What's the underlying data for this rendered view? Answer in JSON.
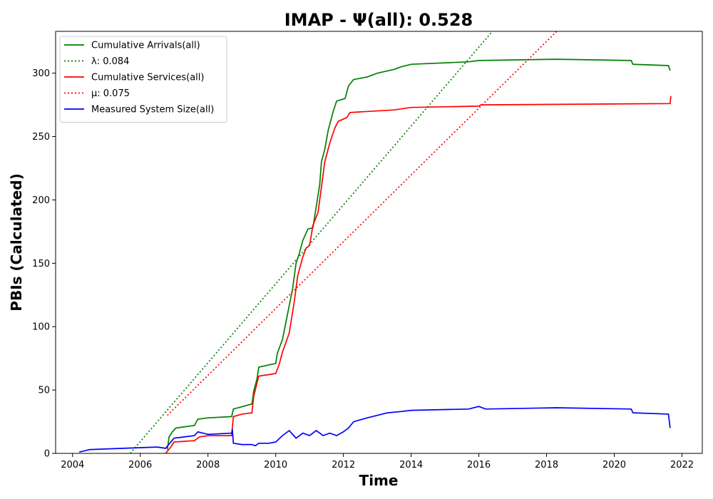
{
  "chart_data": {
    "type": "line",
    "title": "IMAP -  Ψ(all): 0.528",
    "xlabel": "Time",
    "ylabel": "PBIs (Calculated)",
    "xlim": [
      2003.5,
      2022.6
    ],
    "ylim": [
      0,
      333
    ],
    "x_ticks": [
      2004,
      2006,
      2008,
      2010,
      2012,
      2014,
      2016,
      2018,
      2020,
      2022
    ],
    "y_ticks": [
      0,
      50,
      100,
      150,
      200,
      250,
      300
    ],
    "grid": false,
    "legend_position": "upper-left",
    "series": [
      {
        "name": "Cumulative Arrivals(all)",
        "color": "#008000",
        "style": "solid",
        "points": [
          [
            2006.8,
            3
          ],
          [
            2006.85,
            13
          ],
          [
            2006.95,
            17
          ],
          [
            2007.05,
            20
          ],
          [
            2007.6,
            22
          ],
          [
            2007.7,
            27
          ],
          [
            2008.0,
            28
          ],
          [
            2008.7,
            29
          ],
          [
            2008.75,
            35
          ],
          [
            2009.3,
            39
          ],
          [
            2009.35,
            49
          ],
          [
            2009.45,
            59
          ],
          [
            2009.5,
            68
          ],
          [
            2010.0,
            71
          ],
          [
            2010.05,
            79
          ],
          [
            2010.2,
            90
          ],
          [
            2010.35,
            110
          ],
          [
            2010.5,
            130
          ],
          [
            2010.6,
            150
          ],
          [
            2010.7,
            158
          ],
          [
            2010.8,
            168
          ],
          [
            2010.95,
            177
          ],
          [
            2011.1,
            178
          ],
          [
            2011.2,
            195
          ],
          [
            2011.3,
            212
          ],
          [
            2011.35,
            230
          ],
          [
            2011.45,
            240
          ],
          [
            2011.55,
            255
          ],
          [
            2011.7,
            270
          ],
          [
            2011.8,
            278
          ],
          [
            2012.05,
            280
          ],
          [
            2012.15,
            290
          ],
          [
            2012.3,
            295
          ],
          [
            2012.7,
            297
          ],
          [
            2013.0,
            300
          ],
          [
            2013.5,
            303
          ],
          [
            2013.7,
            305
          ],
          [
            2014.0,
            307
          ],
          [
            2015.7,
            309
          ],
          [
            2016.0,
            310
          ],
          [
            2018.3,
            311
          ],
          [
            2020.5,
            310
          ],
          [
            2020.55,
            307
          ],
          [
            2021.6,
            306
          ],
          [
            2021.65,
            302
          ]
        ]
      },
      {
        "name": "λ: 0.084",
        "color": "#008000",
        "style": "dotted",
        "points": [
          [
            2005.7,
            0
          ],
          [
            2016.4,
            333
          ]
        ]
      },
      {
        "name": "Cumulative Services(all)",
        "color": "#ff0000",
        "style": "solid",
        "points": [
          [
            2006.75,
            0
          ],
          [
            2006.9,
            5
          ],
          [
            2007.0,
            9
          ],
          [
            2007.6,
            10
          ],
          [
            2007.75,
            13
          ],
          [
            2008.0,
            14
          ],
          [
            2008.7,
            14
          ],
          [
            2008.75,
            29
          ],
          [
            2009.0,
            31
          ],
          [
            2009.3,
            32
          ],
          [
            2009.35,
            45
          ],
          [
            2009.5,
            61
          ],
          [
            2010.0,
            63
          ],
          [
            2010.1,
            70
          ],
          [
            2010.2,
            80
          ],
          [
            2010.4,
            95
          ],
          [
            2010.55,
            120
          ],
          [
            2010.65,
            140
          ],
          [
            2010.8,
            155
          ],
          [
            2010.9,
            162
          ],
          [
            2011.0,
            164
          ],
          [
            2011.1,
            180
          ],
          [
            2011.25,
            190
          ],
          [
            2011.35,
            210
          ],
          [
            2011.45,
            230
          ],
          [
            2011.6,
            245
          ],
          [
            2011.75,
            257
          ],
          [
            2011.85,
            262
          ],
          [
            2012.1,
            265
          ],
          [
            2012.2,
            269
          ],
          [
            2013.5,
            271
          ],
          [
            2014.0,
            273
          ],
          [
            2016.0,
            274
          ],
          [
            2016.05,
            275
          ],
          [
            2021.65,
            276
          ],
          [
            2021.67,
            282
          ]
        ]
      },
      {
        "name": "μ: 0.075",
        "color": "#ff0000",
        "style": "dotted",
        "points": [
          [
            2006.8,
            30
          ],
          [
            2018.3,
            333
          ]
        ]
      },
      {
        "name": "Measured System Size(all)",
        "color": "#0000ff",
        "style": "solid",
        "points": [
          [
            2004.2,
            1
          ],
          [
            2004.5,
            3
          ],
          [
            2005.5,
            4
          ],
          [
            2006.5,
            5
          ],
          [
            2006.75,
            4
          ],
          [
            2006.9,
            9
          ],
          [
            2007.0,
            12
          ],
          [
            2007.3,
            13
          ],
          [
            2007.6,
            14
          ],
          [
            2007.7,
            17
          ],
          [
            2008.0,
            15
          ],
          [
            2008.7,
            16
          ],
          [
            2008.72,
            19
          ],
          [
            2008.75,
            8
          ],
          [
            2009.0,
            7
          ],
          [
            2009.3,
            7
          ],
          [
            2009.4,
            6
          ],
          [
            2009.5,
            8
          ],
          [
            2009.8,
            8
          ],
          [
            2010.0,
            9
          ],
          [
            2010.2,
            14
          ],
          [
            2010.4,
            18
          ],
          [
            2010.6,
            12
          ],
          [
            2010.8,
            16
          ],
          [
            2011.0,
            14
          ],
          [
            2011.2,
            18
          ],
          [
            2011.4,
            14
          ],
          [
            2011.6,
            16
          ],
          [
            2011.8,
            14
          ],
          [
            2012.0,
            17
          ],
          [
            2012.15,
            20
          ],
          [
            2012.3,
            25
          ],
          [
            2012.7,
            28
          ],
          [
            2013.0,
            30
          ],
          [
            2013.3,
            32
          ],
          [
            2013.7,
            33
          ],
          [
            2014.0,
            34
          ],
          [
            2015.7,
            35
          ],
          [
            2016.0,
            37
          ],
          [
            2016.2,
            35
          ],
          [
            2018.3,
            36
          ],
          [
            2020.5,
            35
          ],
          [
            2020.55,
            32
          ],
          [
            2021.6,
            31
          ],
          [
            2021.65,
            20
          ]
        ]
      }
    ]
  }
}
